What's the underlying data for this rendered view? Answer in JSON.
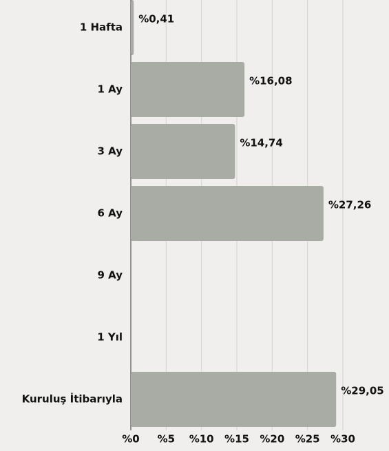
{
  "chart_data": {
    "type": "bar",
    "orientation": "horizontal",
    "categories": [
      "1 Hafta",
      "1 Ay",
      "3 Ay",
      "6 Ay",
      "9 Ay",
      "1 Yıl",
      "Kuruluş İtibarıyla"
    ],
    "values": [
      0.41,
      16.08,
      14.74,
      27.26,
      null,
      null,
      29.05
    ],
    "value_labels": [
      "%0,41",
      "%16,08",
      "%14,74",
      "%27,26",
      null,
      null,
      "%29,05"
    ],
    "color": "#a8aca5",
    "xlim": [
      0,
      30
    ],
    "xticks": [
      {
        "value": 0,
        "label": "%0"
      },
      {
        "value": 5,
        "label": "%5"
      },
      {
        "value": 10,
        "label": "%10"
      },
      {
        "value": 15,
        "label": "%15"
      },
      {
        "value": 20,
        "label": "%20"
      },
      {
        "value": 25,
        "label": "%25"
      },
      {
        "value": 30,
        "label": "%30"
      }
    ],
    "grid": true
  }
}
